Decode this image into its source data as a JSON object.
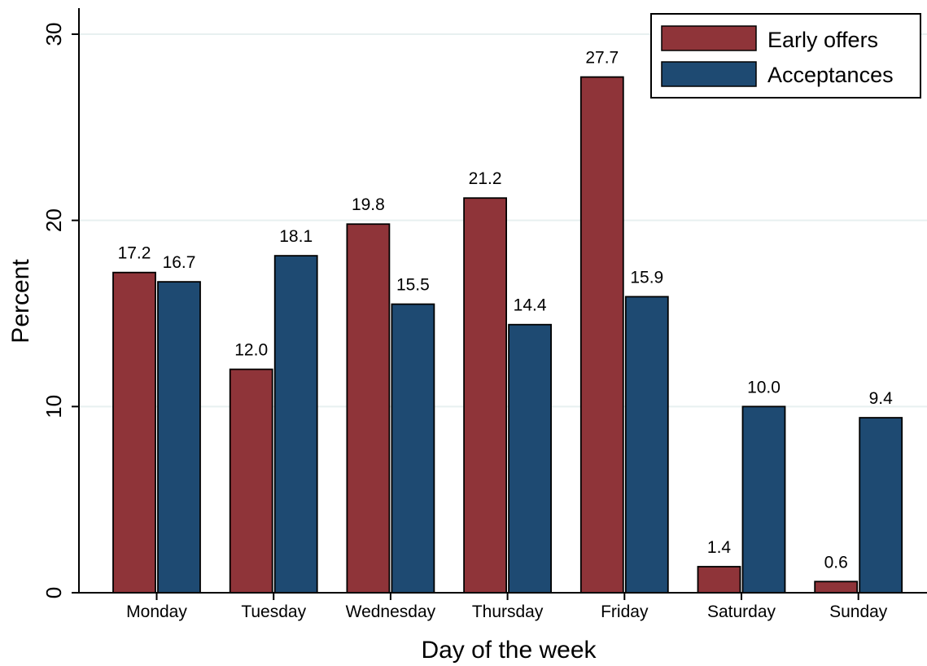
{
  "chart_data": {
    "type": "bar",
    "categories": [
      "Monday",
      "Tuesday",
      "Wednesday",
      "Thursday",
      "Friday",
      "Saturday",
      "Sunday"
    ],
    "series": [
      {
        "name": "Early offers",
        "color": "#8f3439",
        "values": [
          17.2,
          12.0,
          19.8,
          21.2,
          27.7,
          1.4,
          0.6
        ]
      },
      {
        "name": "Acceptances",
        "color": "#1e4a72",
        "values": [
          16.7,
          18.1,
          15.5,
          14.4,
          15.9,
          10.0,
          9.4
        ]
      }
    ],
    "data_labels": [
      [
        "17.2",
        "12.0",
        "19.8",
        "21.2",
        "27.7",
        "1.4",
        "0.6"
      ],
      [
        "16.7",
        "18.1",
        "15.5",
        "14.4",
        "15.9",
        "10.0",
        "9.4"
      ]
    ],
    "title": "",
    "xlabel": "Day of the week",
    "ylabel": "Percent",
    "ylim": [
      0,
      30
    ],
    "yticks": [
      "0",
      "10",
      "20",
      "30"
    ],
    "grid": true,
    "grid_color": "#e8f0f0",
    "legend_position": "top-right"
  }
}
